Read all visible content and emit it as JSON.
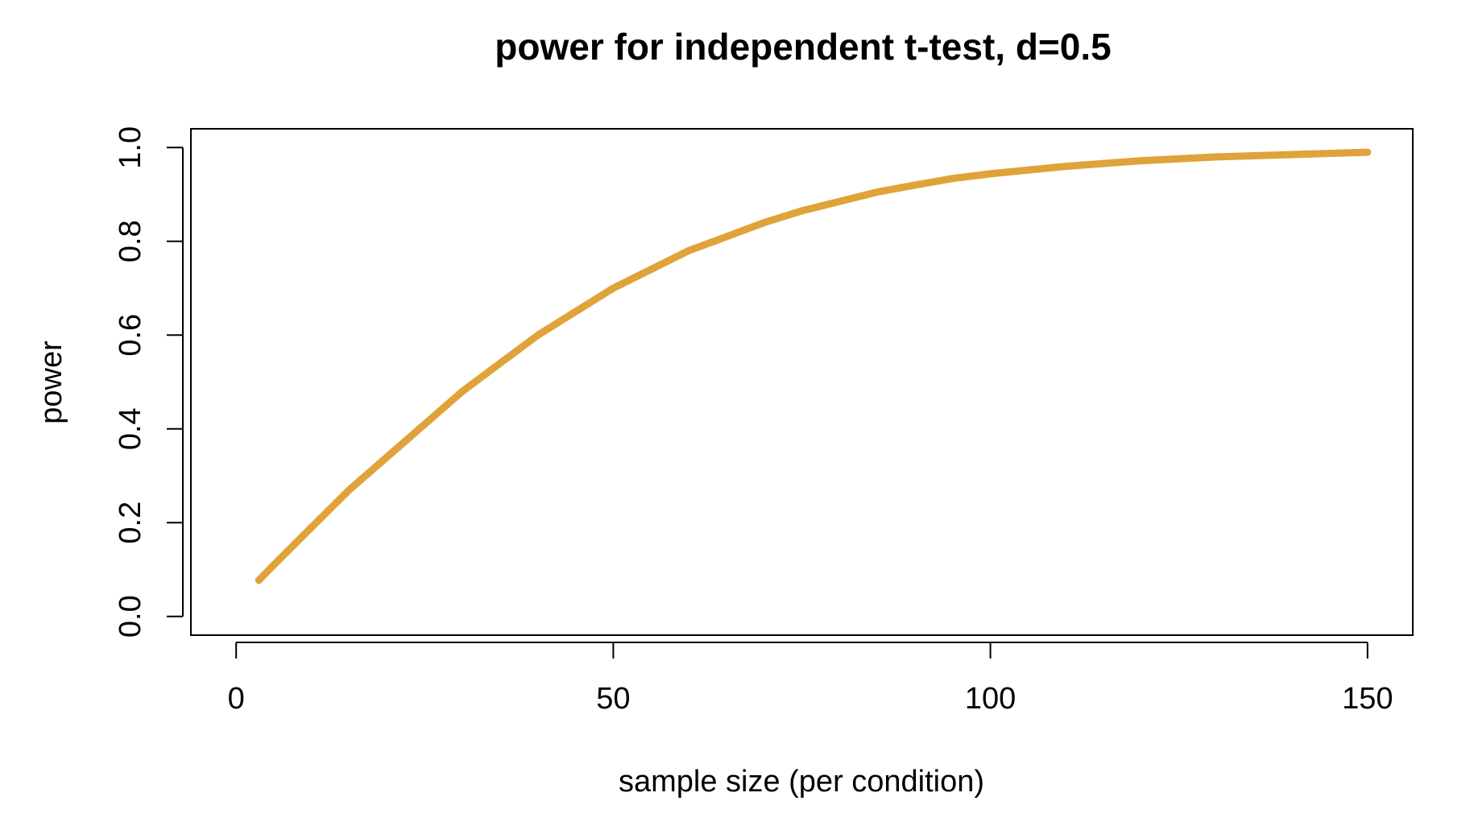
{
  "chart_data": {
    "type": "line",
    "title": "power for independent t-test, d=0.5",
    "xlabel": "sample size (per condition)",
    "ylabel": "power",
    "xlim": [
      -6,
      156
    ],
    "ylim": [
      -0.04,
      1.04
    ],
    "x_ticks": [
      0,
      50,
      100,
      150
    ],
    "x_tick_labels": [
      "0",
      "50",
      "100",
      "150"
    ],
    "y_ticks": [
      0.0,
      0.2,
      0.4,
      0.6,
      0.8,
      1.0
    ],
    "y_tick_labels": [
      "0.0",
      "0.2",
      "0.4",
      "0.6",
      "0.8",
      "1.0"
    ],
    "grid": false,
    "legend": "none",
    "series": [
      {
        "color": "#E0A33A",
        "x": [
          3,
          5,
          10,
          15,
          20,
          25,
          30,
          35,
          40,
          45,
          50,
          55,
          60,
          65,
          70,
          75,
          80,
          85,
          90,
          95,
          100,
          110,
          120,
          130,
          140,
          150
        ],
        "y": [
          0.077,
          0.11,
          0.19,
          0.27,
          0.34,
          0.41,
          0.48,
          0.54,
          0.6,
          0.65,
          0.7,
          0.74,
          0.78,
          0.81,
          0.84,
          0.865,
          0.885,
          0.905,
          0.92,
          0.934,
          0.944,
          0.96,
          0.972,
          0.98,
          0.985,
          0.99
        ]
      }
    ]
  }
}
